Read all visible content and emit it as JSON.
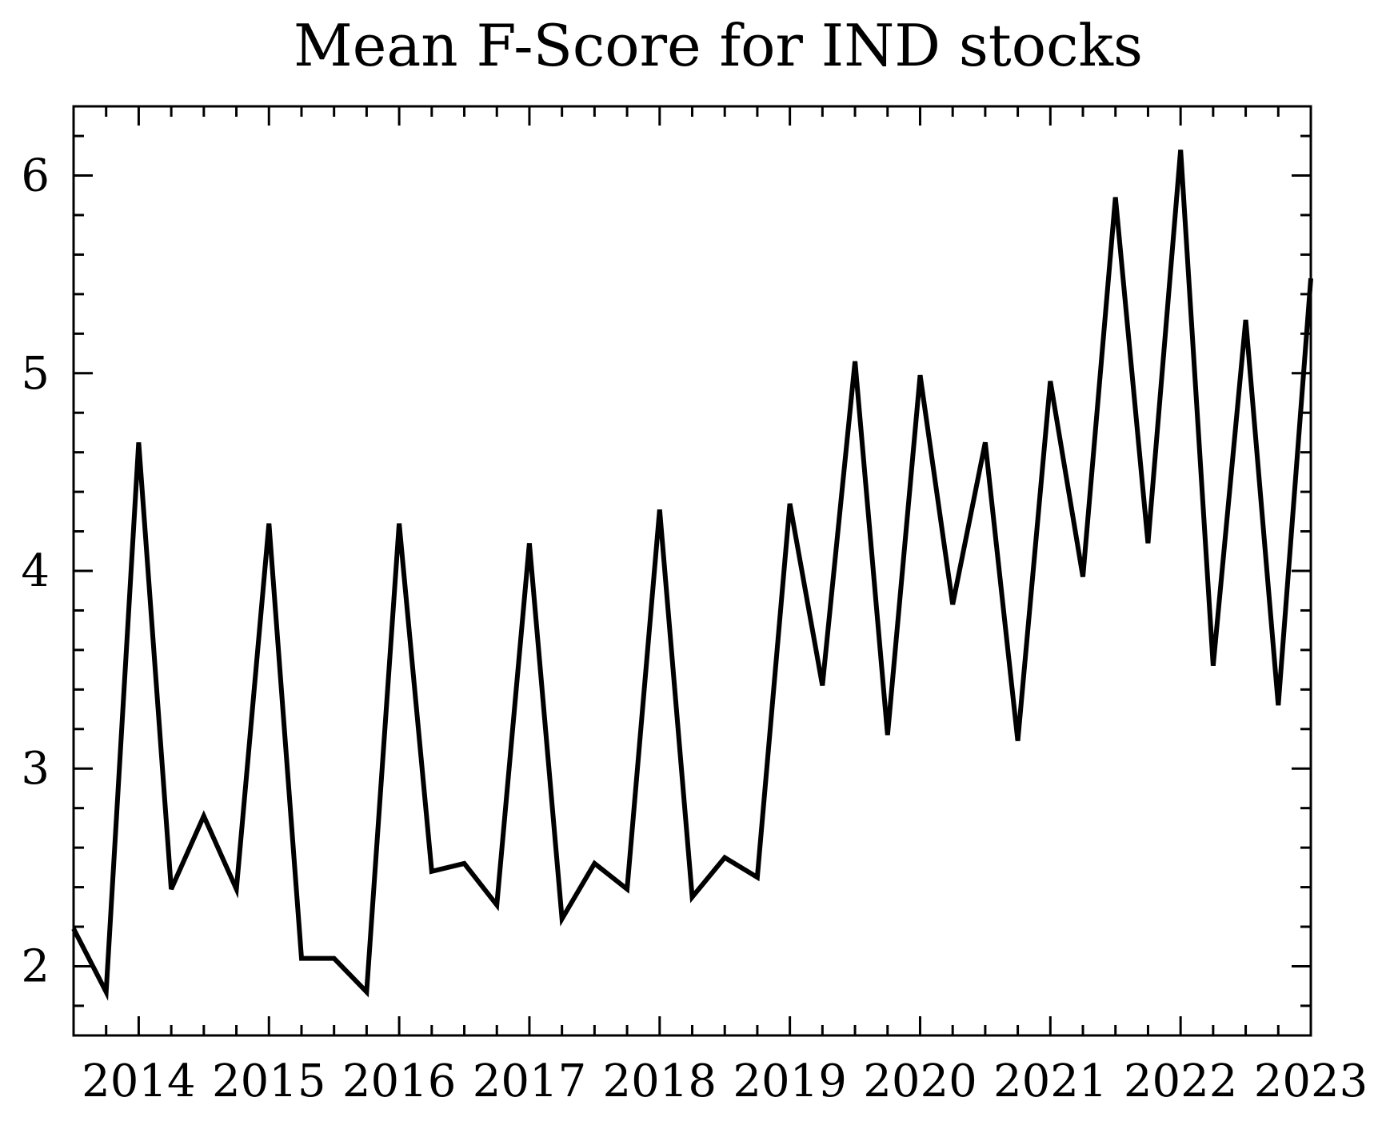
{
  "chart_data": {
    "type": "line",
    "title": "Mean F-Score for IND stocks",
    "xlabel": "",
    "ylabel": "",
    "xlim": [
      2013.5,
      2023.0
    ],
    "ylim": [
      1.65,
      6.35
    ],
    "x_ticks": [
      2014,
      2015,
      2016,
      2017,
      2018,
      2019,
      2020,
      2021,
      2022,
      2023
    ],
    "x_tick_labels": [
      "2014",
      "2015",
      "2016",
      "2017",
      "2018",
      "2019",
      "2020",
      "2021",
      "2022",
      "2023"
    ],
    "x_minor_step": 0.25,
    "y_ticks": [
      2,
      3,
      4,
      5,
      6
    ],
    "y_tick_labels": [
      "2",
      "3",
      "4",
      "5",
      "6"
    ],
    "y_minor_step": 0.2,
    "grid": false,
    "color": "#000000",
    "series": [
      {
        "x": [
          2013.5,
          2013.75,
          2014.0,
          2014.25,
          2014.5,
          2014.75,
          2015.0,
          2015.25,
          2015.5,
          2015.75,
          2016.0,
          2016.25,
          2016.5,
          2016.75,
          2017.0,
          2017.25,
          2017.5,
          2017.75,
          2018.0,
          2018.25,
          2018.5,
          2018.75,
          2019.0,
          2019.25,
          2019.5,
          2019.75,
          2020.0,
          2020.25,
          2020.5,
          2020.75,
          2021.0,
          2021.25,
          2021.5,
          2021.75,
          2022.0,
          2022.25,
          2022.5,
          2022.75,
          2023.0
        ],
        "y": [
          2.19,
          1.87,
          4.65,
          2.39,
          2.76,
          2.39,
          4.24,
          2.04,
          2.04,
          1.87,
          4.24,
          2.48,
          2.52,
          2.31,
          4.14,
          2.24,
          2.52,
          2.39,
          4.31,
          2.35,
          2.55,
          2.45,
          4.34,
          3.42,
          5.06,
          3.17,
          4.99,
          3.83,
          4.65,
          3.14,
          4.96,
          3.97,
          5.89,
          4.14,
          6.13,
          3.52,
          5.27,
          3.32,
          5.48
        ]
      }
    ]
  }
}
